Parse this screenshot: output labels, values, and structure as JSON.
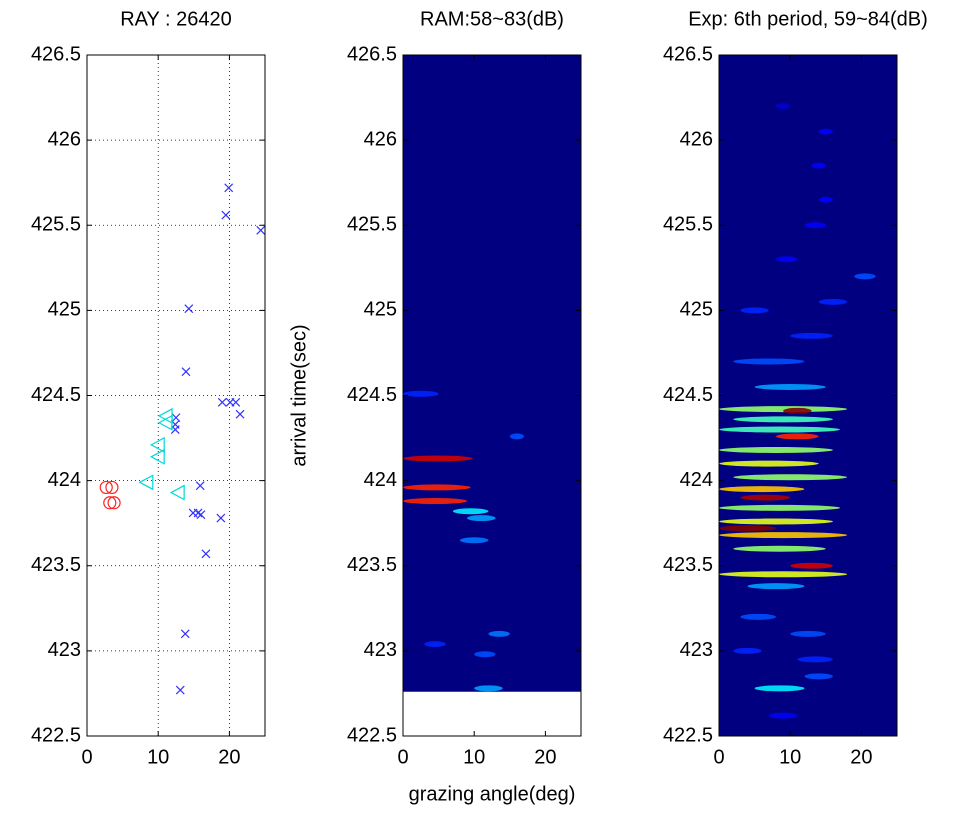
{
  "chart_data": [
    {
      "type": "scatter",
      "title": "RAY : 26420",
      "xlim": [
        0,
        25
      ],
      "xticks": [
        0,
        10,
        20
      ],
      "ylim": [
        422.5,
        426.5
      ],
      "yticks": [
        422.5,
        423,
        423.5,
        424,
        424.5,
        425,
        425.5,
        426,
        426.5
      ],
      "grid": true,
      "series": [
        {
          "marker": "x",
          "color": "#3333ff",
          "x": [
            19.9,
            19.5,
            24.4,
            14.3,
            13.9,
            19.0,
            20.1,
            20.9,
            21.5,
            12.5,
            12.4,
            12.4,
            15.9,
            14.9,
            15.6,
            16.0,
            18.8,
            16.7,
            13.8,
            13.1
          ],
          "values": [
            425.72,
            425.56,
            425.47,
            425.01,
            424.64,
            424.46,
            424.46,
            424.46,
            424.39,
            424.37,
            424.33,
            424.3,
            423.97,
            423.81,
            423.81,
            423.8,
            423.78,
            423.57,
            423.1,
            422.77
          ]
        },
        {
          "marker": "triangle-left",
          "color": "#00d8d8",
          "x": [
            11.1,
            11.1,
            10.0,
            10.0,
            8.4,
            12.8
          ],
          "values": [
            424.38,
            424.34,
            424.21,
            424.14,
            423.99,
            423.93
          ]
        },
        {
          "marker": "circle",
          "color": "#ff2020",
          "x": [
            2.7,
            3.5,
            3.2,
            3.8
          ],
          "values": [
            423.96,
            423.96,
            423.87,
            423.87
          ]
        }
      ]
    },
    {
      "type": "heatmap",
      "title": "RAM:58~83(dB)",
      "x_label": "grazing angle(deg)",
      "y_label": "arrival time(sec)",
      "xlim": [
        0,
        25
      ],
      "xticks": [
        0,
        10,
        20
      ],
      "ylim": [
        422.5,
        426.5
      ],
      "yticks": [
        422.5,
        423,
        423.5,
        424,
        424.5,
        425,
        425.5,
        426,
        426.5
      ],
      "colormap": "jet",
      "clim": [
        58,
        83
      ],
      "coverage": [
        422.76,
        426.5
      ],
      "streaks": [
        {
          "y": 424.13,
          "x": [
            0,
            9.8
          ],
          "level": 81
        },
        {
          "y": 423.96,
          "x": [
            0,
            9.5
          ],
          "level": 79
        },
        {
          "y": 423.88,
          "x": [
            0,
            9
          ],
          "level": 79
        },
        {
          "y": 423.82,
          "x": [
            7,
            12
          ],
          "level": 67
        },
        {
          "y": 423.78,
          "x": [
            9,
            13
          ],
          "level": 65
        },
        {
          "y": 423.65,
          "x": [
            8,
            12
          ],
          "level": 64
        },
        {
          "y": 424.26,
          "x": [
            15,
            17
          ],
          "level": 63
        },
        {
          "y": 424.51,
          "x": [
            0,
            5
          ],
          "level": 62
        },
        {
          "y": 423.1,
          "x": [
            12,
            15
          ],
          "level": 64
        },
        {
          "y": 422.98,
          "x": [
            10,
            13
          ],
          "level": 63
        },
        {
          "y": 423.04,
          "x": [
            3,
            6
          ],
          "level": 62
        },
        {
          "y": 422.78,
          "x": [
            10,
            14
          ],
          "level": 65
        }
      ]
    },
    {
      "type": "heatmap",
      "title": "Exp: 6th period, 59~84(dB)",
      "xlim": [
        0,
        25
      ],
      "xticks": [
        0,
        10,
        20
      ],
      "ylim": [
        422.5,
        426.5
      ],
      "yticks": [
        422.5,
        423,
        423.5,
        424,
        424.5,
        425,
        425.5,
        426,
        426.5
      ],
      "colormap": "jet",
      "clim": [
        59,
        84
      ],
      "streaks": [
        {
          "y": 424.42,
          "x": [
            0,
            18
          ],
          "level": 72
        },
        {
          "y": 424.41,
          "x": [
            9,
            13
          ],
          "level": 84
        },
        {
          "y": 424.36,
          "x": [
            2,
            16
          ],
          "level": 70
        },
        {
          "y": 424.3,
          "x": [
            0,
            17
          ],
          "level": 70
        },
        {
          "y": 424.26,
          "x": [
            8,
            14
          ],
          "level": 80
        },
        {
          "y": 424.18,
          "x": [
            0,
            16
          ],
          "level": 72
        },
        {
          "y": 424.1,
          "x": [
            0,
            14
          ],
          "level": 74
        },
        {
          "y": 424.02,
          "x": [
            2,
            18
          ],
          "level": 72
        },
        {
          "y": 423.95,
          "x": [
            0,
            12
          ],
          "level": 76
        },
        {
          "y": 423.9,
          "x": [
            3,
            10
          ],
          "level": 83
        },
        {
          "y": 423.84,
          "x": [
            0,
            17
          ],
          "level": 72
        },
        {
          "y": 423.76,
          "x": [
            0,
            16
          ],
          "level": 74
        },
        {
          "y": 423.72,
          "x": [
            0,
            8
          ],
          "level": 84
        },
        {
          "y": 423.68,
          "x": [
            0,
            18
          ],
          "level": 76
        },
        {
          "y": 423.6,
          "x": [
            2,
            15
          ],
          "level": 72
        },
        {
          "y": 423.5,
          "x": [
            10,
            16
          ],
          "level": 82
        },
        {
          "y": 423.45,
          "x": [
            0,
            18
          ],
          "level": 74
        },
        {
          "y": 423.38,
          "x": [
            4,
            12
          ],
          "level": 66
        },
        {
          "y": 423.2,
          "x": [
            3,
            8
          ],
          "level": 64
        },
        {
          "y": 423.1,
          "x": [
            10,
            15
          ],
          "level": 64
        },
        {
          "y": 423.0,
          "x": [
            2,
            6
          ],
          "level": 63
        },
        {
          "y": 422.95,
          "x": [
            11,
            16
          ],
          "level": 63
        },
        {
          "y": 422.85,
          "x": [
            12,
            16
          ],
          "level": 64
        },
        {
          "y": 422.78,
          "x": [
            5,
            12
          ],
          "level": 68
        },
        {
          "y": 422.62,
          "x": [
            7,
            11
          ],
          "level": 62
        },
        {
          "y": 424.55,
          "x": [
            5,
            15
          ],
          "level": 66
        },
        {
          "y": 424.7,
          "x": [
            2,
            12
          ],
          "level": 64
        },
        {
          "y": 424.85,
          "x": [
            10,
            16
          ],
          "level": 63
        },
        {
          "y": 425.0,
          "x": [
            3,
            7
          ],
          "level": 63
        },
        {
          "y": 425.05,
          "x": [
            14,
            18
          ],
          "level": 63
        },
        {
          "y": 425.2,
          "x": [
            19,
            22
          ],
          "level": 64
        },
        {
          "y": 425.3,
          "x": [
            8,
            11
          ],
          "level": 62
        },
        {
          "y": 425.5,
          "x": [
            12,
            15
          ],
          "level": 62
        },
        {
          "y": 425.65,
          "x": [
            14,
            16
          ],
          "level": 62
        },
        {
          "y": 425.85,
          "x": [
            13,
            15
          ],
          "level": 62
        },
        {
          "y": 426.05,
          "x": [
            14,
            16
          ],
          "level": 62
        },
        {
          "y": 426.2,
          "x": [
            8,
            10
          ],
          "level": 61
        }
      ]
    }
  ]
}
